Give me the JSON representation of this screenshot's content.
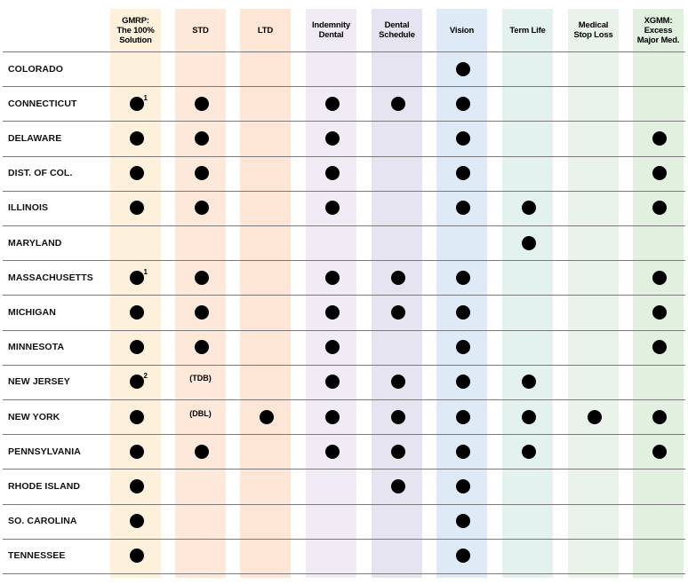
{
  "columns": [
    {
      "key": "gmrp",
      "label": "GMRP:\nThe 100%\nSolution",
      "color": "#fdf1dc"
    },
    {
      "key": "std",
      "label": "STD",
      "color": "#fde8da"
    },
    {
      "key": "ltd",
      "label": "LTD",
      "color": "#fde6d6"
    },
    {
      "key": "indemnity_dental",
      "label": "Indemnity\nDental",
      "color": "#f1ebf5"
    },
    {
      "key": "dental_schedule",
      "label": "Dental\nSchedule",
      "color": "#e7e4f1"
    },
    {
      "key": "vision",
      "label": "Vision",
      "color": "#dfeaf7"
    },
    {
      "key": "term_life",
      "label": "Term Life",
      "color": "#e3f2ef"
    },
    {
      "key": "medical_stop_loss",
      "label": "Medical\nStop Loss",
      "color": "#e9f3ea"
    },
    {
      "key": "xgmm",
      "label": "XGMM:\nExcess\nMajor Med.",
      "color": "#e2f1df"
    }
  ],
  "rows": [
    {
      "state": "COLORADO",
      "cells": [
        "",
        "",
        "",
        "",
        "",
        "dot",
        "",
        "",
        ""
      ]
    },
    {
      "state": "CONNECTICUT",
      "cells": [
        "dot:1",
        "dot",
        "",
        "dot",
        "dot",
        "dot",
        "",
        "",
        ""
      ]
    },
    {
      "state": "DELAWARE",
      "cells": [
        "dot",
        "dot",
        "",
        "dot",
        "",
        "dot",
        "",
        "",
        "dot"
      ]
    },
    {
      "state": "DIST. OF COL.",
      "cells": [
        "dot",
        "dot",
        "",
        "dot",
        "",
        "dot",
        "",
        "",
        "dot"
      ]
    },
    {
      "state": "ILLINOIS",
      "cells": [
        "dot",
        "dot",
        "",
        "dot",
        "",
        "dot",
        "dot",
        "",
        "dot"
      ]
    },
    {
      "state": "MARYLAND",
      "cells": [
        "",
        "",
        "",
        "",
        "",
        "",
        "dot",
        "",
        ""
      ]
    },
    {
      "state": "MASSACHUSETTS",
      "cells": [
        "dot:1",
        "dot",
        "",
        "dot",
        "dot",
        "dot",
        "",
        "",
        "dot"
      ]
    },
    {
      "state": "MICHIGAN",
      "cells": [
        "dot",
        "dot",
        "",
        "dot",
        "dot",
        "dot",
        "",
        "",
        "dot"
      ]
    },
    {
      "state": "MINNESOTA",
      "cells": [
        "dot",
        "dot",
        "",
        "dot",
        "",
        "dot",
        "",
        "",
        "dot"
      ]
    },
    {
      "state": "NEW JERSEY",
      "cells": [
        "dot:2",
        "text:(TDB)",
        "",
        "dot",
        "dot",
        "dot",
        "dot",
        "",
        ""
      ]
    },
    {
      "state": "NEW YORK",
      "cells": [
        "dot",
        "text:(DBL)",
        "dot",
        "dot",
        "dot",
        "dot",
        "dot",
        "dot",
        "dot"
      ]
    },
    {
      "state": "PENNSYLVANIA",
      "cells": [
        "dot",
        "dot",
        "",
        "dot",
        "dot",
        "dot",
        "dot",
        "",
        "dot"
      ]
    },
    {
      "state": "RHODE ISLAND",
      "cells": [
        "dot",
        "",
        "",
        "",
        "dot",
        "dot",
        "",
        "",
        ""
      ]
    },
    {
      "state": "SO. CAROLINA",
      "cells": [
        "dot",
        "",
        "",
        "",
        "",
        "dot",
        "",
        "",
        ""
      ]
    },
    {
      "state": "TENNESSEE",
      "cells": [
        "dot",
        "",
        "",
        "",
        "",
        "dot",
        "",
        "",
        ""
      ]
    }
  ]
}
